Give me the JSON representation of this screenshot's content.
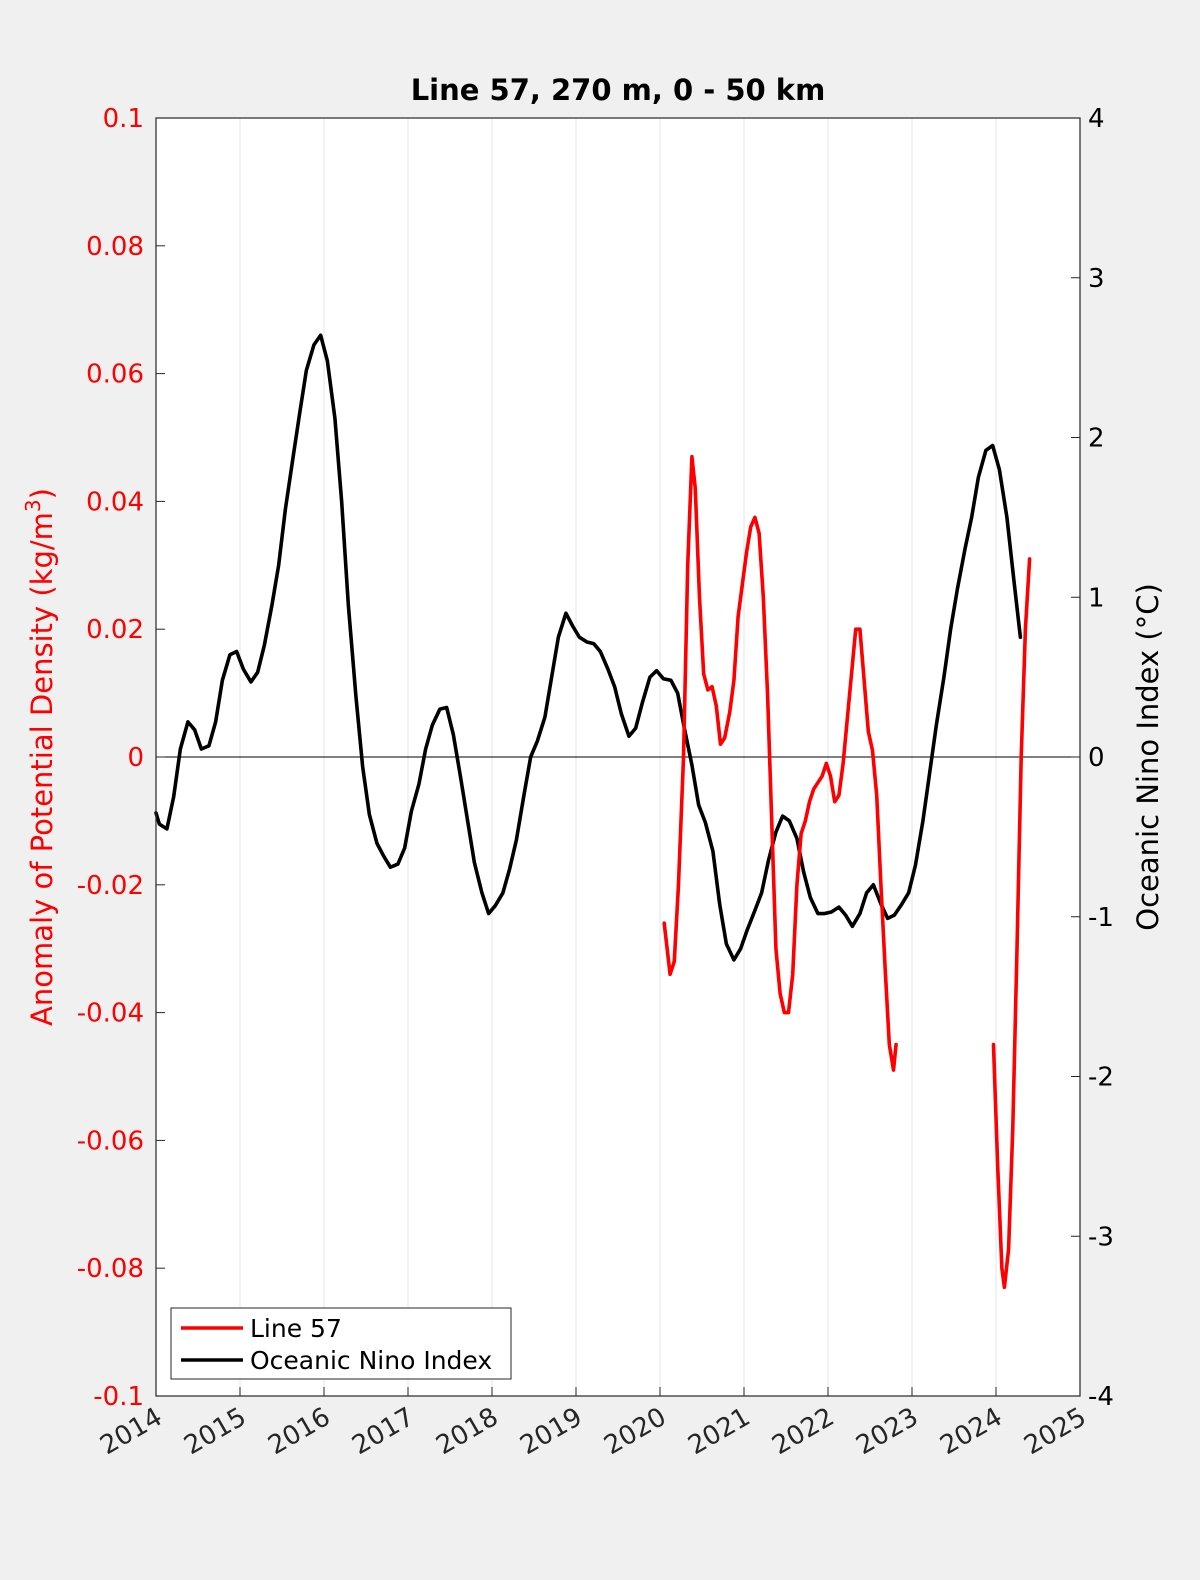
{
  "chart_data": {
    "type": "line",
    "title": "Line 57, 270 m, 0 - 50 km",
    "xlabel": "",
    "ylabel_left": "Anomaly of Potential Density (kg/m",
    "ylabel_left_sup": "3",
    "ylabel_left_close": ")",
    "ylabel_right": "Oceanic Nino Index (°C)",
    "xlim": [
      2014,
      2025
    ],
    "ylim_left": [
      -0.1,
      0.1
    ],
    "ylim_right": [
      -4,
      4
    ],
    "x_ticks": [
      "2014",
      "2015",
      "2016",
      "2017",
      "2018",
      "2019",
      "2020",
      "2021",
      "2022",
      "2023",
      "2024",
      "2025"
    ],
    "y_left_ticks": [
      "0.1",
      "0.08",
      "0.06",
      "0.04",
      "0.02",
      "0",
      "-0.02",
      "-0.04",
      "-0.06",
      "-0.08",
      "-0.1"
    ],
    "y_right_ticks": [
      "4",
      "3",
      "2",
      "1",
      "0",
      "-1",
      "-2",
      "-3",
      "-4"
    ],
    "grid": "vertical",
    "legend_position": "bottom-left",
    "colors": {
      "line57": "#ff0000",
      "oni": "#000000",
      "left_axis": "#ff0000",
      "right_axis": "#000000"
    },
    "series": [
      {
        "name": "Line 57",
        "axis": "left",
        "segments": [
          [
            [
              2020.05,
              -0.026
            ],
            [
              2020.12,
              -0.034
            ],
            [
              2020.17,
              -0.032
            ],
            [
              2020.22,
              -0.02
            ],
            [
              2020.28,
              0.0
            ],
            [
              2020.33,
              0.03
            ],
            [
              2020.38,
              0.047
            ],
            [
              2020.42,
              0.042
            ],
            [
              2020.47,
              0.025
            ],
            [
              2020.52,
              0.013
            ],
            [
              2020.57,
              0.0105
            ],
            [
              2020.62,
              0.011
            ],
            [
              2020.67,
              0.008
            ],
            [
              2020.72,
              0.002
            ],
            [
              2020.77,
              0.003
            ],
            [
              2020.83,
              0.007
            ],
            [
              2020.88,
              0.012
            ],
            [
              2020.93,
              0.022
            ],
            [
              2020.98,
              0.027
            ],
            [
              2021.03,
              0.032
            ],
            [
              2021.08,
              0.036
            ],
            [
              2021.13,
              0.0375
            ],
            [
              2021.18,
              0.035
            ],
            [
              2021.23,
              0.025
            ],
            [
              2021.28,
              0.01
            ],
            [
              2021.33,
              -0.01
            ],
            [
              2021.38,
              -0.03
            ],
            [
              2021.43,
              -0.037
            ],
            [
              2021.48,
              -0.04
            ],
            [
              2021.53,
              -0.04
            ],
            [
              2021.58,
              -0.034
            ],
            [
              2021.63,
              -0.02
            ],
            [
              2021.68,
              -0.012
            ],
            [
              2021.73,
              -0.01
            ],
            [
              2021.78,
              -0.007
            ],
            [
              2021.83,
              -0.005
            ],
            [
              2021.88,
              -0.004
            ],
            [
              2021.93,
              -0.003
            ],
            [
              2021.98,
              -0.001
            ],
            [
              2022.03,
              -0.003
            ],
            [
              2022.08,
              -0.007
            ],
            [
              2022.13,
              -0.006
            ],
            [
              2022.18,
              -0.001
            ],
            [
              2022.23,
              0.006
            ],
            [
              2022.28,
              0.013
            ],
            [
              2022.33,
              0.02
            ],
            [
              2022.38,
              0.02
            ],
            [
              2022.43,
              0.012
            ],
            [
              2022.48,
              0.004
            ],
            [
              2022.53,
              0.001
            ],
            [
              2022.58,
              -0.006
            ],
            [
              2022.63,
              -0.02
            ],
            [
              2022.68,
              -0.033
            ],
            [
              2022.73,
              -0.045
            ],
            [
              2022.78,
              -0.049
            ],
            [
              2022.81,
              -0.045
            ]
          ],
          [
            [
              2023.97,
              -0.045
            ],
            [
              2024.02,
              -0.064
            ],
            [
              2024.07,
              -0.08
            ],
            [
              2024.1,
              -0.083
            ],
            [
              2024.15,
              -0.077
            ],
            [
              2024.2,
              -0.058
            ],
            [
              2024.25,
              -0.03
            ],
            [
              2024.3,
              0.0
            ],
            [
              2024.35,
              0.02
            ],
            [
              2024.4,
              0.031
            ]
          ]
        ]
      },
      {
        "name": "Oceanic Nino Index",
        "axis": "right",
        "segments": [
          [
            [
              2014.0,
              -0.35
            ],
            [
              2014.04,
              -0.42
            ],
            [
              2014.13,
              -0.45
            ],
            [
              2014.21,
              -0.25
            ],
            [
              2014.29,
              0.05
            ],
            [
              2014.38,
              0.22
            ],
            [
              2014.46,
              0.17
            ],
            [
              2014.54,
              0.05
            ],
            [
              2014.63,
              0.07
            ],
            [
              2014.71,
              0.22
            ],
            [
              2014.79,
              0.48
            ],
            [
              2014.88,
              0.64
            ],
            [
              2014.96,
              0.66
            ],
            [
              2015.04,
              0.55
            ],
            [
              2015.13,
              0.47
            ],
            [
              2015.21,
              0.53
            ],
            [
              2015.29,
              0.7
            ],
            [
              2015.38,
              0.95
            ],
            [
              2015.46,
              1.2
            ],
            [
              2015.54,
              1.55
            ],
            [
              2015.63,
              1.87
            ],
            [
              2015.71,
              2.15
            ],
            [
              2015.79,
              2.42
            ],
            [
              2015.88,
              2.58
            ],
            [
              2015.96,
              2.64
            ],
            [
              2016.04,
              2.48
            ],
            [
              2016.13,
              2.12
            ],
            [
              2016.21,
              1.6
            ],
            [
              2016.29,
              0.95
            ],
            [
              2016.38,
              0.38
            ],
            [
              2016.46,
              -0.06
            ],
            [
              2016.54,
              -0.36
            ],
            [
              2016.63,
              -0.54
            ],
            [
              2016.71,
              -0.62
            ],
            [
              2016.79,
              -0.69
            ],
            [
              2016.88,
              -0.67
            ],
            [
              2016.96,
              -0.57
            ],
            [
              2017.04,
              -0.34
            ],
            [
              2017.13,
              -0.17
            ],
            [
              2017.21,
              0.05
            ],
            [
              2017.29,
              0.2
            ],
            [
              2017.38,
              0.3
            ],
            [
              2017.46,
              0.31
            ],
            [
              2017.54,
              0.14
            ],
            [
              2017.63,
              -0.14
            ],
            [
              2017.71,
              -0.4
            ],
            [
              2017.79,
              -0.66
            ],
            [
              2017.88,
              -0.85
            ],
            [
              2017.96,
              -0.98
            ],
            [
              2018.04,
              -0.93
            ],
            [
              2018.13,
              -0.85
            ],
            [
              2018.21,
              -0.7
            ],
            [
              2018.29,
              -0.52
            ],
            [
              2018.38,
              -0.24
            ],
            [
              2018.46,
              0.0
            ],
            [
              2018.54,
              0.1
            ],
            [
              2018.63,
              0.25
            ],
            [
              2018.71,
              0.5
            ],
            [
              2018.79,
              0.75
            ],
            [
              2018.88,
              0.9
            ],
            [
              2018.96,
              0.82
            ],
            [
              2019.04,
              0.75
            ],
            [
              2019.13,
              0.72
            ],
            [
              2019.21,
              0.71
            ],
            [
              2019.29,
              0.66
            ],
            [
              2019.38,
              0.55
            ],
            [
              2019.46,
              0.44
            ],
            [
              2019.54,
              0.27
            ],
            [
              2019.63,
              0.13
            ],
            [
              2019.71,
              0.18
            ],
            [
              2019.79,
              0.34
            ],
            [
              2019.88,
              0.5
            ],
            [
              2019.96,
              0.54
            ],
            [
              2020.04,
              0.49
            ],
            [
              2020.13,
              0.48
            ],
            [
              2020.21,
              0.4
            ],
            [
              2020.29,
              0.18
            ],
            [
              2020.38,
              -0.05
            ],
            [
              2020.46,
              -0.3
            ],
            [
              2020.54,
              -0.41
            ],
            [
              2020.63,
              -0.59
            ],
            [
              2020.71,
              -0.92
            ],
            [
              2020.79,
              -1.17
            ],
            [
              2020.88,
              -1.27
            ],
            [
              2020.96,
              -1.2
            ],
            [
              2021.04,
              -1.08
            ],
            [
              2021.13,
              -0.96
            ],
            [
              2021.21,
              -0.85
            ],
            [
              2021.29,
              -0.65
            ],
            [
              2021.38,
              -0.47
            ],
            [
              2021.46,
              -0.37
            ],
            [
              2021.54,
              -0.4
            ],
            [
              2021.63,
              -0.51
            ],
            [
              2021.71,
              -0.72
            ],
            [
              2021.79,
              -0.88
            ],
            [
              2021.88,
              -0.98
            ],
            [
              2021.96,
              -0.98
            ],
            [
              2022.04,
              -0.97
            ],
            [
              2022.13,
              -0.94
            ],
            [
              2022.21,
              -0.99
            ],
            [
              2022.29,
              -1.06
            ],
            [
              2022.38,
              -0.98
            ],
            [
              2022.46,
              -0.85
            ],
            [
              2022.54,
              -0.8
            ],
            [
              2022.63,
              -0.92
            ],
            [
              2022.71,
              -1.01
            ],
            [
              2022.79,
              -0.99
            ],
            [
              2022.88,
              -0.92
            ],
            [
              2022.96,
              -0.85
            ],
            [
              2023.04,
              -0.68
            ],
            [
              2023.13,
              -0.4
            ],
            [
              2023.21,
              -0.1
            ],
            [
              2023.29,
              0.2
            ],
            [
              2023.38,
              0.5
            ],
            [
              2023.46,
              0.8
            ],
            [
              2023.54,
              1.05
            ],
            [
              2023.63,
              1.3
            ],
            [
              2023.71,
              1.5
            ],
            [
              2023.79,
              1.75
            ],
            [
              2023.88,
              1.92
            ],
            [
              2023.96,
              1.95
            ],
            [
              2024.04,
              1.8
            ],
            [
              2024.13,
              1.5
            ],
            [
              2024.21,
              1.12
            ],
            [
              2024.29,
              0.75
            ]
          ]
        ]
      }
    ]
  }
}
